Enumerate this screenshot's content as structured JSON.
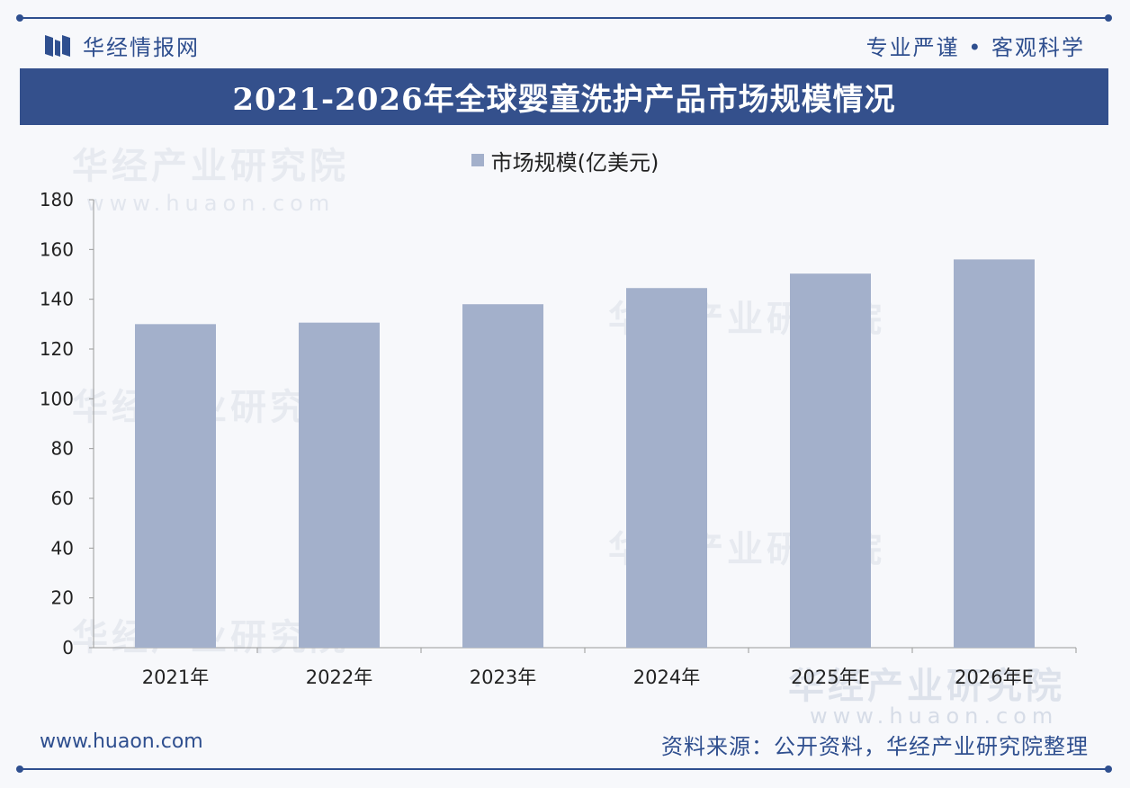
{
  "header": {
    "brand": "华经情报网",
    "slogan": "专业严谨 • 客观科学"
  },
  "colors": {
    "brand_blue": "#34508c",
    "bar": "#a3b0cb"
  },
  "chart_data": {
    "type": "bar",
    "title": "2021-2026年全球婴童洗护产品市场规模情况",
    "legend": [
      "市场规模(亿美元)"
    ],
    "categories": [
      "2021年",
      "2022年",
      "2023年",
      "2024年",
      "2025年E",
      "2026年E"
    ],
    "series": [
      {
        "name": "市场规模(亿美元)",
        "values": [
          130,
          130.6,
          138,
          144.5,
          150.3,
          156
        ]
      }
    ],
    "yticks": [
      0,
      20,
      40,
      60,
      80,
      100,
      120,
      140,
      160,
      180
    ],
    "ylim": [
      0,
      180
    ],
    "xlabel": "",
    "ylabel": ""
  },
  "watermark": {
    "text": "华经产业研究院",
    "url": "www.huaon.com"
  },
  "footer": {
    "url": "www.huaon.com",
    "source": "资料来源：公开资料，华经产业研究院整理"
  }
}
